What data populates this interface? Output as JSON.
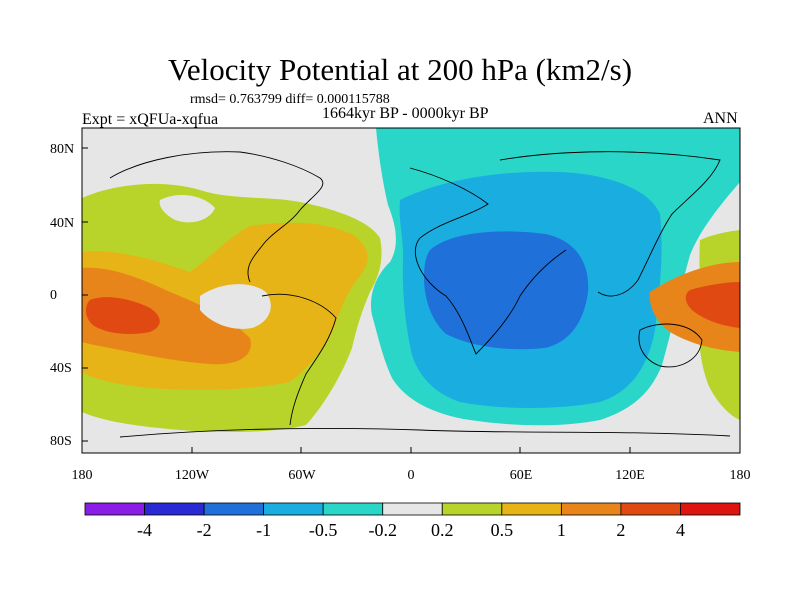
{
  "title": "Velocity Potential at 200 hPa (km2/s)",
  "stats_text": "rmsd= 0.763799 diff= 0.000115788",
  "experiment": "Expt = xQFUa-xqfua",
  "period": "1664kyr BP - 0000kyr BP",
  "season": "ANN",
  "y_ticks": [
    "80N",
    "40N",
    "0",
    "40S",
    "80S"
  ],
  "x_ticks": [
    "180",
    "120W",
    "60W",
    "0",
    "60E",
    "120E",
    "180"
  ],
  "colorbar": {
    "colors": [
      "#8a1ee6",
      "#2a2ad4",
      "#1f70d8",
      "#1aaee0",
      "#2ad6c8",
      "#e6e6e6",
      "#b8d42a",
      "#e6b416",
      "#e8851a",
      "#e04a12",
      "#dd1410"
    ],
    "labels": [
      "-4",
      "-2",
      "-1",
      "-0.5",
      "-0.2",
      "0.2",
      "0.5",
      "1",
      "2",
      "4"
    ]
  }
}
